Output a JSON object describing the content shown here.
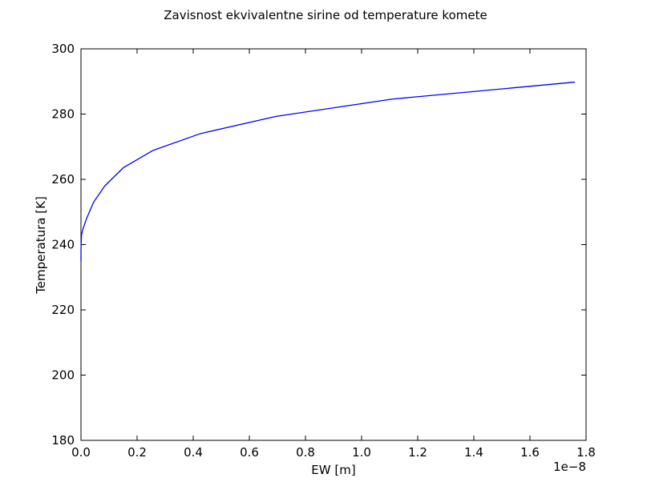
{
  "chart_data": {
    "type": "line",
    "title": "Zavisnost ekvivalentne sirine od temperature komete",
    "xlabel": "EW [m]",
    "ylabel": "Temperatura [K]",
    "x_offset_label": "1e−8",
    "xlim": [
      0.0,
      1.8e-08
    ],
    "ylim": [
      180,
      300
    ],
    "x_ticks": [
      0.0,
      2e-09,
      4e-09,
      6e-09,
      8e-09,
      1e-08,
      1.2e-08,
      1.4e-08,
      1.6e-08,
      1.8e-08
    ],
    "x_tick_labels": [
      "0.0",
      "0.2",
      "0.4",
      "0.6",
      "0.8",
      "1.0",
      "1.2",
      "1.4",
      "1.6",
      "1.8"
    ],
    "y_ticks": [
      180,
      200,
      220,
      240,
      260,
      280,
      300
    ],
    "y_tick_labels": [
      "180",
      "200",
      "220",
      "240",
      "260",
      "280",
      "300"
    ],
    "grid": false,
    "series": [
      {
        "color": "#0000ff",
        "x": [
          0.0,
          1e-12,
          5e-12,
          2e-11,
          8e-11,
          2e-10,
          4.5e-10,
          8.5e-10,
          1.5e-09,
          2.55e-09,
          4.25e-09,
          6.95e-09,
          1.11e-08,
          1.76e-08
        ],
        "y": [
          235,
          238,
          240,
          243,
          245,
          248,
          253,
          258,
          263.5,
          268.8,
          274,
          279.3,
          284.6,
          289.8
        ]
      }
    ]
  }
}
